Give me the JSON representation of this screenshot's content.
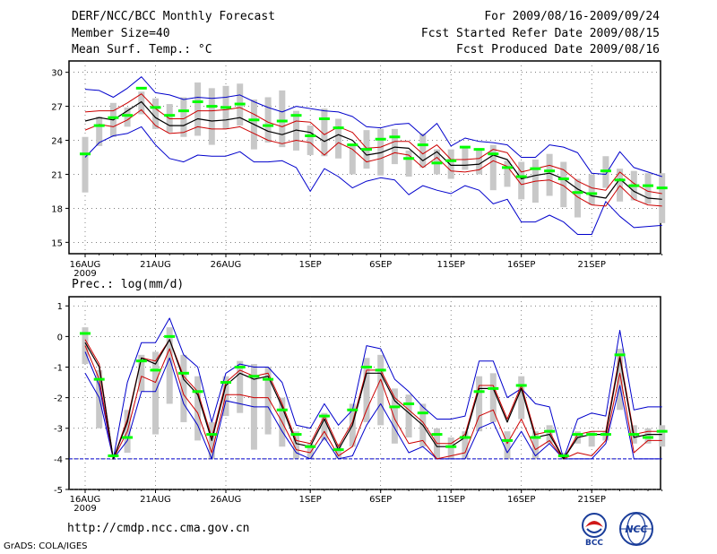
{
  "header": {
    "title": "DERF/NCC/BCC Monthly Forecast",
    "member_size": "Member Size=40",
    "period": "For 2009/08/16-2009/09/24",
    "fcst_started": "Fcst Started Refer Date 2009/08/15",
    "fcst_produced": "Fcst Produced Date 2009/08/16"
  },
  "footer": {
    "url": "http://cmdp.ncc.cma.gov.cn",
    "grads": "GrADS: COLA/IGES",
    "logo_bcc": "BCC",
    "logo_ncc": "NCC"
  },
  "colors": {
    "box": "#c8c8c8",
    "median": "#00ff00",
    "envelope": "#0000cc",
    "band": "#cc0000",
    "mean": "#000000",
    "floor": "#0000cc"
  },
  "chart_data": [
    {
      "type": "line",
      "title": "Mean Surf. Temp.: °C",
      "ylim": [
        14,
        31
      ],
      "yticks": [
        "15",
        "18",
        "21",
        "24",
        "27",
        "30"
      ],
      "xticks": [
        {
          "day": 0,
          "label": "16AUG",
          "sub": "2009"
        },
        {
          "day": 5,
          "label": "21AUG"
        },
        {
          "day": 10,
          "label": "26AUG"
        },
        {
          "day": 16,
          "label": "1SEP"
        },
        {
          "day": 21,
          "label": "6SEP"
        },
        {
          "day": 26,
          "label": "11SEP"
        },
        {
          "day": 31,
          "label": "16SEP"
        },
        {
          "day": 36,
          "label": "21SEP"
        }
      ],
      "grid": true,
      "series": [
        {
          "name": "max",
          "values": [
            28.5,
            28.4,
            27.8,
            28.6,
            29.6,
            28.2,
            28.0,
            27.6,
            27.8,
            27.7,
            27.8,
            28.0,
            27.4,
            26.9,
            26.5,
            27.0,
            26.8,
            26.6,
            26.5,
            26.1,
            25.2,
            25.1,
            25.4,
            25.5,
            24.4,
            25.5,
            23.5,
            24.2,
            23.9,
            23.8,
            23.6,
            22.5,
            22.5,
            23.6,
            23.4,
            22.9,
            21.1,
            21.0,
            23.0,
            21.6,
            21.2,
            20.8
          ]
        },
        {
          "name": "upper",
          "values": [
            26.5,
            26.6,
            26.6,
            27.3,
            28.1,
            26.8,
            25.9,
            25.9,
            26.6,
            26.6,
            26.7,
            26.9,
            26.3,
            25.6,
            25.2,
            25.7,
            25.6,
            24.5,
            25.2,
            24.7,
            23.3,
            23.4,
            23.9,
            23.9,
            22.8,
            23.6,
            22.3,
            22.3,
            22.4,
            23.2,
            22.9,
            21.2,
            21.5,
            21.8,
            21.4,
            20.4,
            19.8,
            19.6,
            21.2,
            20.2,
            19.5,
            19.3
          ]
        },
        {
          "name": "mean",
          "values": [
            25.7,
            26.0,
            25.8,
            26.6,
            27.4,
            26.0,
            25.3,
            25.3,
            25.9,
            25.7,
            25.8,
            26.0,
            25.4,
            24.8,
            24.5,
            24.9,
            24.7,
            23.9,
            24.5,
            24.0,
            22.7,
            22.9,
            23.4,
            23.3,
            22.2,
            23.0,
            21.8,
            21.8,
            21.9,
            22.7,
            22.3,
            20.6,
            20.9,
            21.1,
            20.6,
            19.7,
            19.1,
            18.9,
            20.6,
            19.5,
            18.9,
            18.8
          ]
        },
        {
          "name": "lower",
          "values": [
            24.9,
            25.4,
            25.2,
            25.8,
            26.7,
            25.3,
            24.6,
            24.7,
            25.2,
            25.0,
            25.0,
            25.2,
            24.6,
            24.0,
            23.7,
            24.0,
            23.8,
            22.7,
            23.8,
            23.2,
            22.1,
            22.4,
            22.9,
            22.7,
            21.6,
            22.5,
            21.3,
            21.2,
            21.4,
            22.2,
            21.7,
            20.1,
            20.4,
            20.5,
            20.0,
            19.0,
            18.3,
            18.2,
            20.0,
            18.8,
            18.3,
            18.2
          ]
        },
        {
          "name": "min",
          "values": [
            22.5,
            23.8,
            24.4,
            24.6,
            25.2,
            23.6,
            22.4,
            22.1,
            22.7,
            22.6,
            22.6,
            23.0,
            22.1,
            22.1,
            22.2,
            21.6,
            19.5,
            21.5,
            20.8,
            19.8,
            20.4,
            20.7,
            20.5,
            19.2,
            20.0,
            19.6,
            19.3,
            20.0,
            19.6,
            18.4,
            18.8,
            16.8,
            16.8,
            17.4,
            16.8,
            15.7,
            15.7,
            18.6,
            17.3,
            16.3,
            16.4,
            16.5
          ]
        },
        {
          "name": "median",
          "values": [
            22.8,
            25.3,
            26.0,
            26.2,
            28.6,
            26.9,
            26.2,
            26.6,
            27.4,
            27.0,
            26.9,
            27.2,
            25.8,
            25.3,
            25.7,
            26.2,
            24.4,
            25.9,
            25.1,
            23.6,
            23.2,
            24.1,
            24.3,
            22.4,
            23.6,
            22.0,
            22.2,
            23.4,
            23.2,
            22.8,
            21.6,
            20.8,
            21.5,
            21.3,
            20.6,
            19.4,
            19.3,
            21.3,
            20.5,
            20.0,
            20.0,
            19.8
          ]
        },
        {
          "name": "box_high",
          "values": [
            24.3,
            26.1,
            27.3,
            26.9,
            28.3,
            27.7,
            27.2,
            27.8,
            29.1,
            28.6,
            28.8,
            29.0,
            27.6,
            27.8,
            28.4,
            26.6,
            25.3,
            26.8,
            25.9,
            23.7,
            24.9,
            25.0,
            25.0,
            23.1,
            24.6,
            23.2,
            23.2,
            23.5,
            23.3,
            23.6,
            22.2,
            22.1,
            22.3,
            22.8,
            22.1,
            20.6,
            21.0,
            22.6,
            21.5,
            21.3,
            21.1,
            21.1
          ]
        },
        {
          "name": "box_low",
          "values": [
            19.4,
            23.5,
            24.3,
            25.2,
            26.3,
            25.0,
            24.7,
            24.3,
            24.4,
            23.6,
            25.0,
            25.3,
            23.2,
            23.8,
            23.4,
            23.1,
            22.7,
            22.6,
            22.4,
            21.0,
            21.5,
            20.9,
            21.9,
            20.8,
            21.6,
            21.0,
            20.6,
            21.4,
            21.0,
            19.6,
            19.9,
            18.8,
            18.5,
            19.1,
            18.1,
            17.2,
            18.3,
            19.8,
            18.6,
            18.7,
            18.4,
            16.7
          ]
        }
      ]
    },
    {
      "type": "line",
      "title": "Prec.: log(mm/d)",
      "ylim": [
        -5,
        1.3
      ],
      "yticks": [
        "1",
        "0",
        "-1",
        "-2",
        "-3",
        "-4",
        "-5"
      ],
      "xticks": [
        {
          "day": 0,
          "label": "16AUG",
          "sub": "2009"
        },
        {
          "day": 5,
          "label": "21AUG"
        },
        {
          "day": 10,
          "label": "26AUG"
        },
        {
          "day": 16,
          "label": "1SEP"
        },
        {
          "day": 21,
          "label": "6SEP"
        },
        {
          "day": 26,
          "label": "11SEP"
        },
        {
          "day": 31,
          "label": "16SEP"
        },
        {
          "day": 36,
          "label": "21SEP"
        }
      ],
      "grid": true,
      "floor": -4,
      "series": [
        {
          "name": "max",
          "values": [
            -1.2,
            -2.0,
            -4.0,
            -1.5,
            -0.2,
            -0.2,
            0.6,
            -0.6,
            -1.0,
            -2.8,
            -1.2,
            -0.9,
            -1.0,
            -1.0,
            -1.5,
            -2.9,
            -3.0,
            -2.2,
            -2.9,
            -2.4,
            -0.3,
            -0.4,
            -1.4,
            -1.8,
            -2.3,
            -2.7,
            -2.7,
            -2.6,
            -0.8,
            -0.8,
            -2.0,
            -1.7,
            -2.2,
            -2.3,
            -4.0,
            -2.7,
            -2.5,
            -2.6,
            0.2,
            -2.4,
            -2.3,
            -2.3
          ]
        },
        {
          "name": "upper",
          "values": [
            -0.1,
            -0.9,
            -4.0,
            -2.7,
            -0.7,
            -0.8,
            -0.1,
            -1.3,
            -1.8,
            -3.3,
            -1.5,
            -1.1,
            -1.3,
            -1.2,
            -2.2,
            -3.4,
            -3.5,
            -2.6,
            -3.6,
            -2.8,
            -1.1,
            -1.1,
            -2.0,
            -2.4,
            -2.8,
            -3.5,
            -3.5,
            -3.2,
            -1.6,
            -1.6,
            -2.7,
            -1.6,
            -3.2,
            -3.1,
            -4.0,
            -3.2,
            -3.1,
            -3.1,
            -0.6,
            -3.2,
            -3.1,
            -3.1
          ]
        },
        {
          "name": "mean",
          "values": [
            -0.2,
            -1.0,
            -4.0,
            -2.8,
            -0.7,
            -0.9,
            -0.1,
            -1.4,
            -1.9,
            -3.4,
            -1.6,
            -1.2,
            -1.4,
            -1.3,
            -2.3,
            -3.5,
            -3.6,
            -2.7,
            -3.7,
            -2.9,
            -1.2,
            -1.2,
            -2.1,
            -2.5,
            -2.9,
            -3.6,
            -3.6,
            -3.3,
            -1.7,
            -1.7,
            -2.8,
            -1.7,
            -3.3,
            -3.2,
            -4.0,
            -3.3,
            -3.2,
            -3.2,
            -0.7,
            -3.3,
            -3.2,
            -3.2
          ]
        },
        {
          "name": "lower",
          "values": [
            -0.3,
            -1.4,
            -4.0,
            -3.1,
            -1.3,
            -1.5,
            -0.4,
            -1.9,
            -2.5,
            -3.8,
            -1.9,
            -1.9,
            -2.0,
            -2.0,
            -2.8,
            -3.7,
            -3.8,
            -3.1,
            -3.9,
            -3.6,
            -2.4,
            -1.4,
            -2.7,
            -3.5,
            -3.4,
            -4.0,
            -3.9,
            -3.8,
            -2.6,
            -2.4,
            -3.5,
            -2.7,
            -3.7,
            -3.4,
            -4.0,
            -3.8,
            -3.9,
            -3.4,
            -1.2,
            -3.8,
            -3.4,
            -3.4
          ]
        },
        {
          "name": "min",
          "values": [
            -0.5,
            -1.6,
            -4.0,
            -3.4,
            -1.8,
            -1.8,
            -0.7,
            -2.2,
            -2.9,
            -4.0,
            -2.1,
            -2.2,
            -2.3,
            -2.3,
            -3.1,
            -3.8,
            -4.0,
            -3.3,
            -4.0,
            -3.9,
            -2.9,
            -2.2,
            -3.0,
            -3.8,
            -3.6,
            -4.0,
            -4.0,
            -4.0,
            -3.0,
            -2.8,
            -3.8,
            -3.1,
            -3.9,
            -3.5,
            -4.0,
            -4.0,
            -4.0,
            -3.5,
            -1.6,
            -4.0,
            -4.0,
            -4.0
          ]
        },
        {
          "name": "median",
          "values": [
            0.1,
            -1.4,
            -3.9,
            -3.3,
            -0.8,
            -1.1,
            0.0,
            -1.2,
            -1.8,
            -3.2,
            -1.5,
            -1.0,
            -1.3,
            -1.4,
            -2.4,
            -3.2,
            -3.6,
            -2.6,
            -3.7,
            -2.4,
            -1.0,
            -1.1,
            -2.3,
            -2.2,
            -2.5,
            -3.2,
            -3.6,
            -3.3,
            -1.8,
            -1.7,
            -3.4,
            -1.6,
            -3.3,
            -3.1,
            -3.9,
            -3.2,
            -3.2,
            -3.2,
            -0.6,
            -3.2,
            -3.3,
            -3.1
          ]
        },
        {
          "name": "box_high",
          "values": [
            0.3,
            -1.1,
            -4.0,
            -2.4,
            -0.6,
            -0.5,
            0.3,
            -0.6,
            -1.3,
            -2.8,
            -1.3,
            -0.8,
            -0.9,
            -1.0,
            -2.0,
            -3.1,
            -3.5,
            -2.5,
            -3.5,
            -2.2,
            -0.7,
            -0.6,
            -1.7,
            -1.9,
            -2.2,
            -3.0,
            -3.3,
            -3.1,
            -1.3,
            -1.2,
            -3.1,
            -1.3,
            -3.1,
            -2.9,
            -3.8,
            -3.1,
            -3.1,
            -3.1,
            -0.4,
            -2.9,
            -3.0,
            -2.9
          ]
        },
        {
          "name": "box_low",
          "values": [
            -0.9,
            -3.0,
            -4.0,
            -3.8,
            -1.8,
            -3.2,
            -2.2,
            -2.8,
            -3.4,
            -4.0,
            -2.6,
            -2.5,
            -3.7,
            -3.2,
            -3.6,
            -4.0,
            -4.0,
            -3.4,
            -4.0,
            -3.6,
            -2.8,
            -2.9,
            -3.5,
            -3.3,
            -3.6,
            -4.0,
            -4.0,
            -4.0,
            -3.1,
            -2.8,
            -4.0,
            -2.7,
            -4.0,
            -3.5,
            -4.0,
            -3.5,
            -3.6,
            -3.4,
            -2.4,
            -3.5,
            -3.5,
            -3.6
          ]
        }
      ]
    }
  ]
}
